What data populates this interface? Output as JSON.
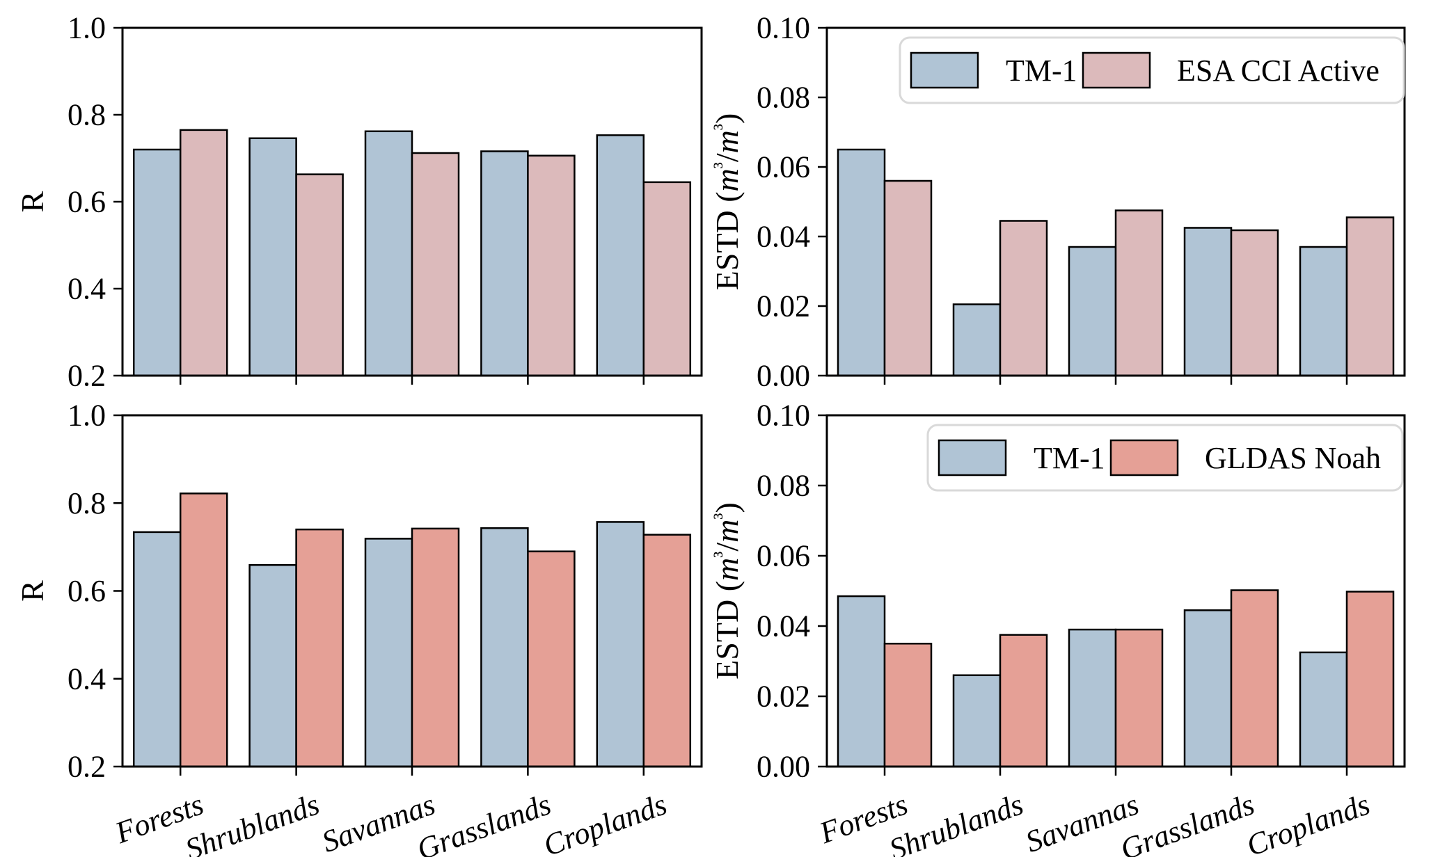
{
  "figure": {
    "background": "#ffffff",
    "axis_color": "#000000",
    "bar_edge_color": "#000000",
    "legend_border_color": "#d9d9d9",
    "legend_background": "#ffffff",
    "categories": [
      "Forests",
      "Shrublands",
      "Savannas",
      "Grasslands",
      "Croplands"
    ]
  },
  "chart_data": [
    {
      "id": "top-left",
      "type": "bar",
      "title": "",
      "xlabel": "",
      "ylabel": "R",
      "ylim": [
        0.2,
        1.0
      ],
      "yticks": [
        0.2,
        0.4,
        0.6,
        0.8,
        1.0
      ],
      "ytick_labels": [
        "0.2",
        "0.4",
        "0.6",
        "0.8",
        "1.0"
      ],
      "grid": false,
      "show_xticklabels": false,
      "legend": false,
      "legend_position": null,
      "categories": [
        "Forests",
        "Shrublands",
        "Savannas",
        "Grasslands",
        "Croplands"
      ],
      "series": [
        {
          "name": "TM-1",
          "color": "#b0c4d5",
          "values": [
            0.72,
            0.746,
            0.762,
            0.716,
            0.753
          ]
        },
        {
          "name": "ESA CCI Active",
          "color": "#dcbabb",
          "values": [
            0.765,
            0.663,
            0.712,
            0.706,
            0.645
          ]
        }
      ]
    },
    {
      "id": "top-right",
      "type": "bar",
      "title": "",
      "xlabel": "",
      "ylabel": "ESTD (m³/m³)",
      "ylim": [
        0.0,
        0.1
      ],
      "yticks": [
        0.0,
        0.02,
        0.04,
        0.06,
        0.08,
        0.1
      ],
      "ytick_labels": [
        "0.00",
        "0.02",
        "0.04",
        "0.06",
        "0.08",
        "0.10"
      ],
      "grid": false,
      "show_xticklabels": false,
      "legend": true,
      "legend_position": "upper right",
      "categories": [
        "Forests",
        "Shrublands",
        "Savannas",
        "Grasslands",
        "Croplands"
      ],
      "series": [
        {
          "name": "TM-1",
          "color": "#b0c4d5",
          "values": [
            0.065,
            0.0205,
            0.037,
            0.0425,
            0.037
          ]
        },
        {
          "name": "ESA CCI Active",
          "color": "#dcbabb",
          "values": [
            0.056,
            0.0445,
            0.0475,
            0.0418,
            0.0455
          ]
        }
      ]
    },
    {
      "id": "bottom-left",
      "type": "bar",
      "title": "",
      "xlabel": "",
      "ylabel": "R",
      "ylim": [
        0.2,
        1.0
      ],
      "yticks": [
        0.2,
        0.4,
        0.6,
        0.8,
        1.0
      ],
      "ytick_labels": [
        "0.2",
        "0.4",
        "0.6",
        "0.8",
        "1.0"
      ],
      "grid": false,
      "show_xticklabels": true,
      "legend": false,
      "legend_position": null,
      "categories": [
        "Forests",
        "Shrublands",
        "Savannas",
        "Grasslands",
        "Croplands"
      ],
      "series": [
        {
          "name": "TM-1",
          "color": "#b0c4d5",
          "values": [
            0.734,
            0.659,
            0.719,
            0.743,
            0.757
          ]
        },
        {
          "name": "GLDAS Noah",
          "color": "#e5a096",
          "values": [
            0.822,
            0.74,
            0.742,
            0.69,
            0.728
          ]
        }
      ]
    },
    {
      "id": "bottom-right",
      "type": "bar",
      "title": "",
      "xlabel": "",
      "ylabel": "ESTD (m³/m³)",
      "ylim": [
        0.0,
        0.1
      ],
      "yticks": [
        0.0,
        0.02,
        0.04,
        0.06,
        0.08,
        0.1
      ],
      "ytick_labels": [
        "0.00",
        "0.02",
        "0.04",
        "0.06",
        "0.08",
        "0.10"
      ],
      "grid": false,
      "show_xticklabels": true,
      "legend": true,
      "legend_position": "upper right",
      "categories": [
        "Forests",
        "Shrublands",
        "Savannas",
        "Grasslands",
        "Croplands"
      ],
      "series": [
        {
          "name": "TM-1",
          "color": "#b0c4d5",
          "values": [
            0.0485,
            0.026,
            0.039,
            0.0445,
            0.0325
          ]
        },
        {
          "name": "GLDAS Noah",
          "color": "#e5a096",
          "values": [
            0.035,
            0.0375,
            0.039,
            0.0502,
            0.0498
          ]
        }
      ]
    }
  ]
}
